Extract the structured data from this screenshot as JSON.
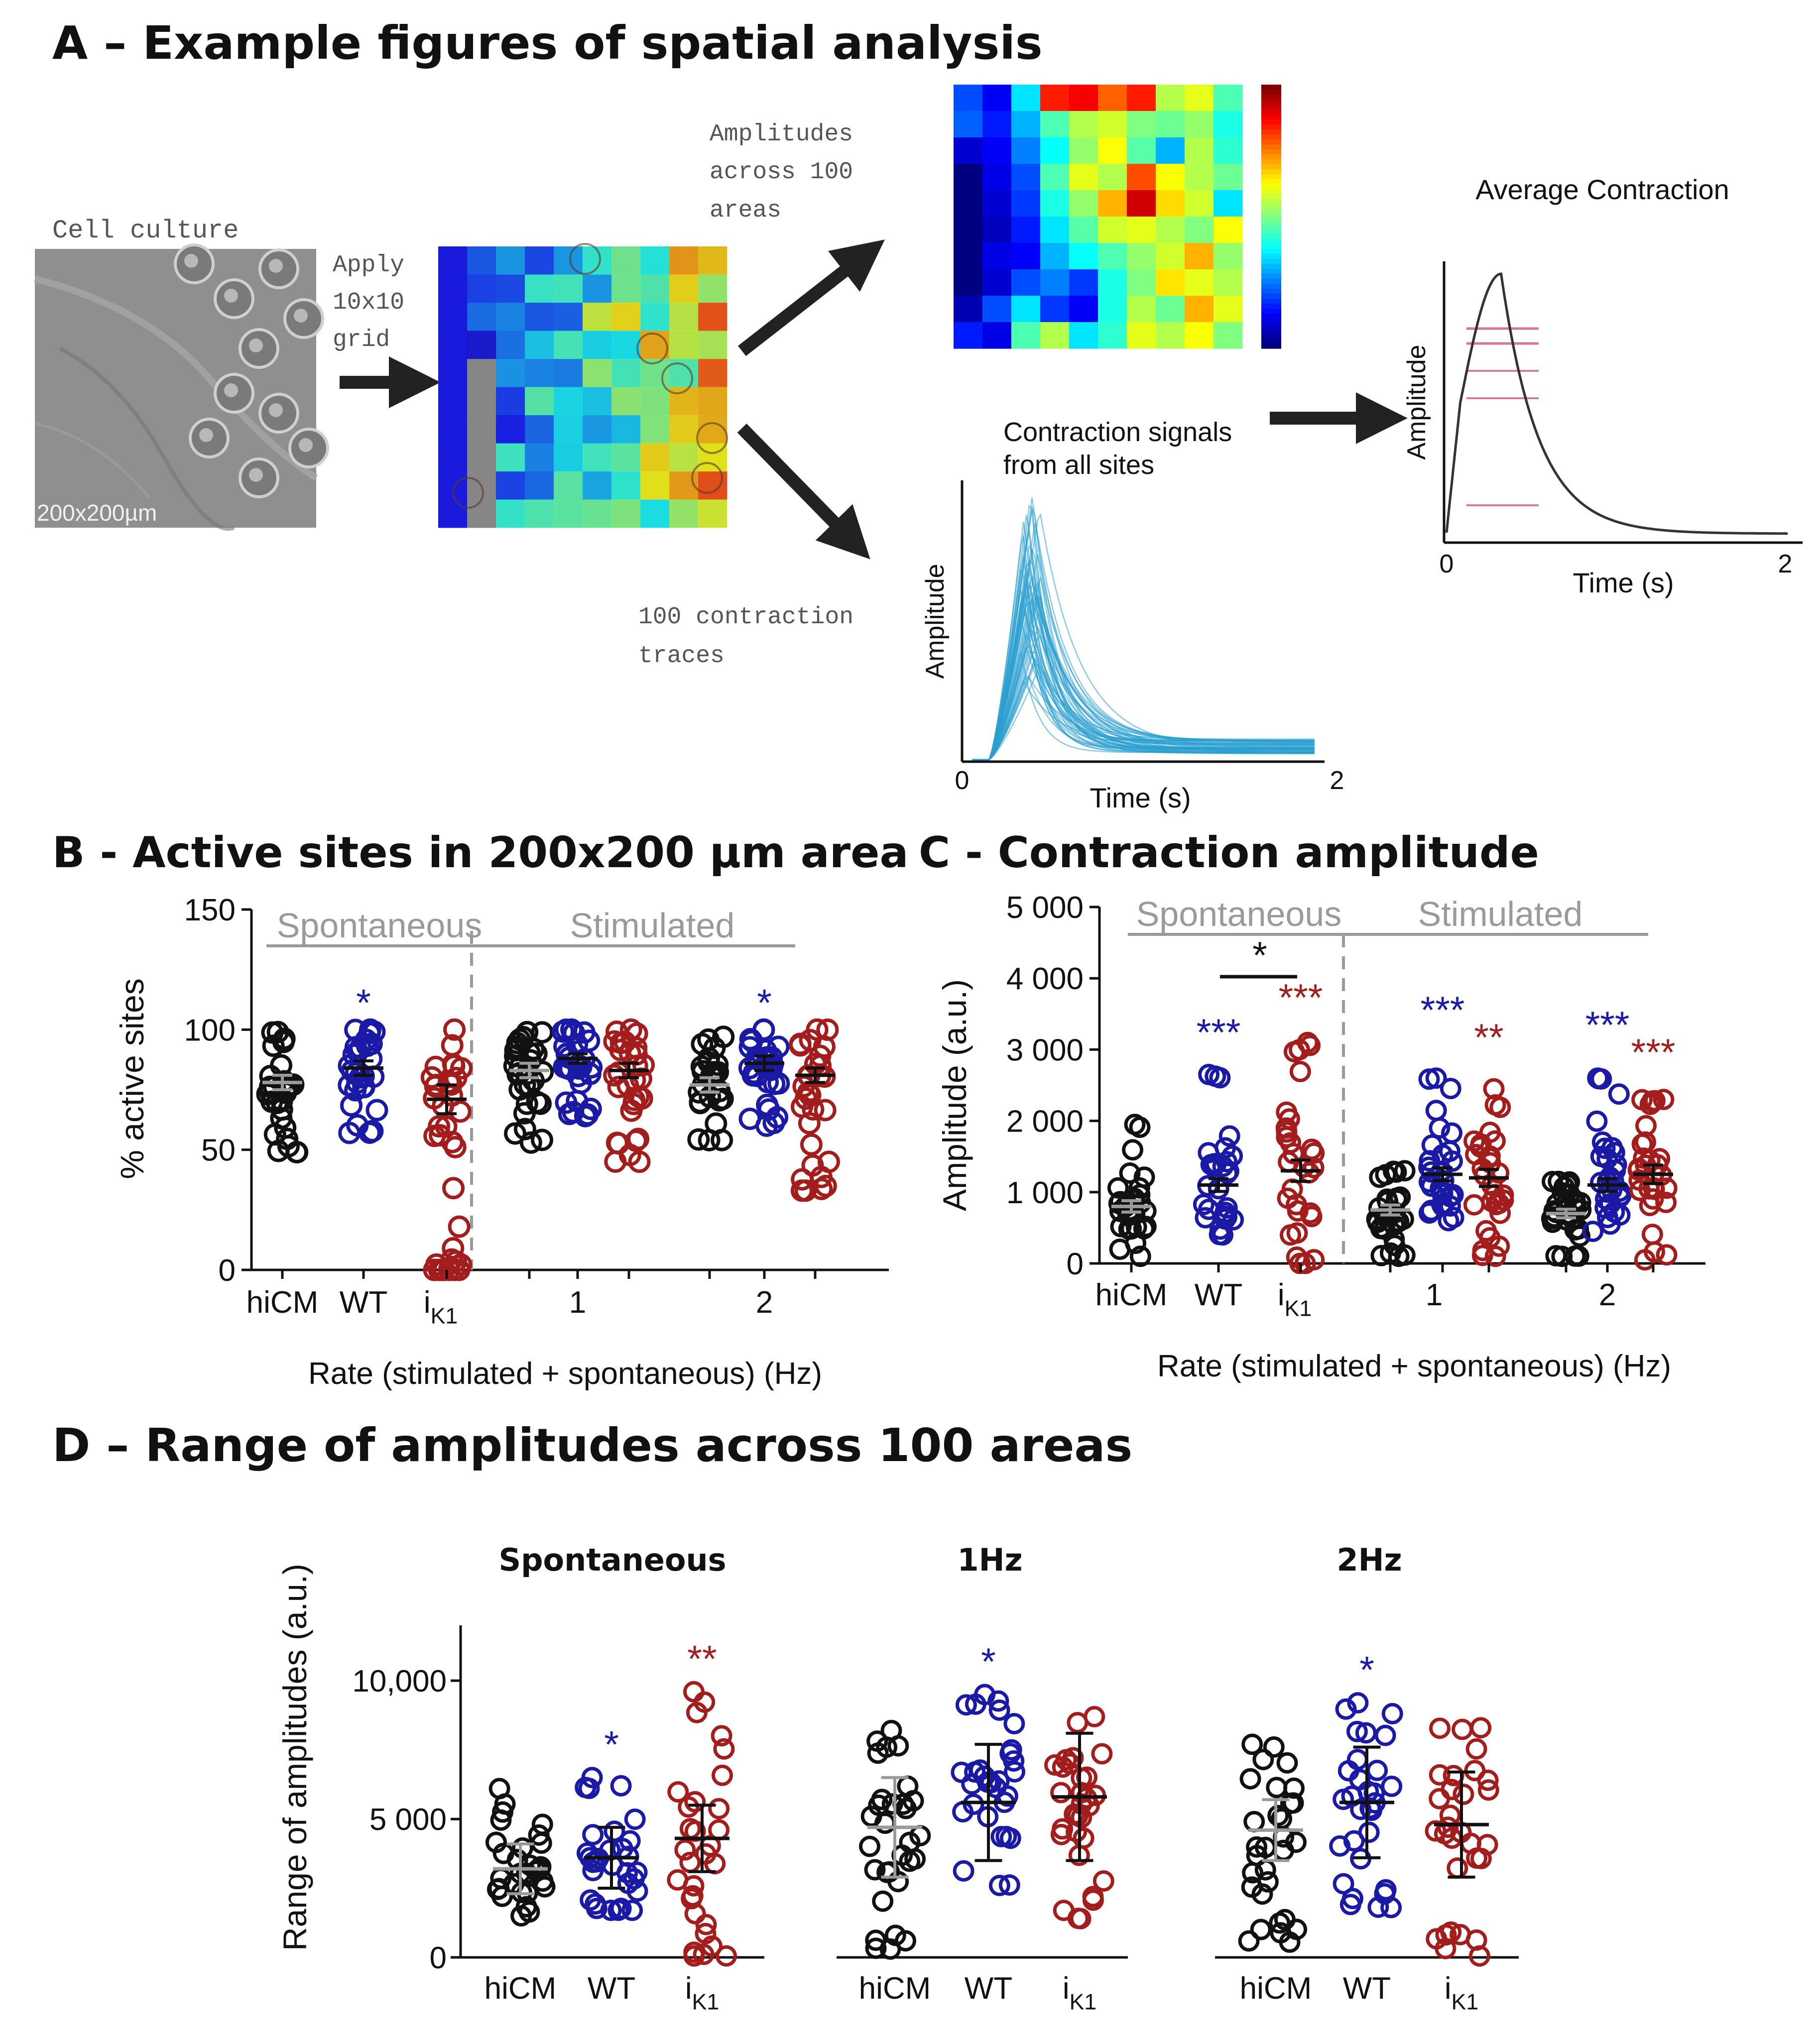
{
  "panel_a": {
    "title": "A – Example figures of spatial analysis",
    "cell_culture_label": "Cell culture",
    "scale_label": "200x200µm",
    "apply_grid_label": [
      "Apply",
      "10x10",
      "grid"
    ],
    "amplitudes_label": [
      "Amplitudes",
      "across 100",
      "areas"
    ],
    "traces_label": [
      "100 contraction",
      "traces"
    ],
    "contraction_signals_label": [
      "Contraction signals",
      "from all sites"
    ],
    "average_title": "Average Contraction",
    "ylabel": "Amplitude",
    "xlabel": "Time (s)",
    "x_start": "0",
    "x_end": "2",
    "colors": {
      "trace": "#2a9fd0",
      "arrow": "#222222",
      "avg_line": "#333333",
      "avg_marks": "#cc5577"
    }
  },
  "chart_data": [
    {
      "id": "B",
      "type": "scatter",
      "title": "B - Active sites in 200x200 µm area",
      "ylabel": "% active sites",
      "xlabel": "Rate (stimulated + spontaneous) (Hz)",
      "ylim": [
        0,
        150
      ],
      "yticks": [
        "0",
        "50",
        "100",
        "150"
      ],
      "section_labels": [
        "Spontaneous",
        "Stimulated"
      ],
      "group_labels": [
        "hiCM",
        "WT",
        "i",
        "1",
        "2"
      ],
      "subscript": "K1",
      "groups": [
        {
          "condition": "Spontaneous",
          "series": "hiCM",
          "mean": 78,
          "sem": 3,
          "min": 49,
          "max": 99
        },
        {
          "condition": "Spontaneous",
          "series": "WT",
          "mean": 84,
          "sem": 3,
          "min": 57,
          "max": 100,
          "sig": "*"
        },
        {
          "condition": "Spontaneous",
          "series": "iK1",
          "mean": 71,
          "sem": 6,
          "min": 0,
          "max": 100
        },
        {
          "condition": "1",
          "series": "hiCM",
          "mean": 83,
          "sem": 3,
          "min": 53,
          "max": 99
        },
        {
          "condition": "1",
          "series": "WT",
          "mean": 88,
          "sem": 2,
          "min": 64,
          "max": 100
        },
        {
          "condition": "1",
          "series": "iK1",
          "mean": 83,
          "sem": 3,
          "min": 45,
          "max": 100
        },
        {
          "condition": "2",
          "series": "hiCM",
          "mean": 77,
          "sem": 3,
          "min": 54,
          "max": 97
        },
        {
          "condition": "2",
          "series": "WT",
          "mean": 86,
          "sem": 3,
          "min": 60,
          "max": 100,
          "sig": "*"
        },
        {
          "condition": "2",
          "series": "iK1",
          "mean": 81,
          "sem": 3,
          "min": 33,
          "max": 100
        }
      ]
    },
    {
      "id": "C",
      "type": "scatter",
      "title": "C - Contraction amplitude",
      "ylabel": "Amplitude (a.u.)",
      "xlabel": "Rate (stimulated + spontaneous) (Hz)",
      "ylim": [
        0,
        5000
      ],
      "yticks": [
        "0",
        "1 000",
        "2 000",
        "3 000",
        "4 000",
        "5 000"
      ],
      "section_labels": [
        "Spontaneous",
        "Stimulated"
      ],
      "group_labels": [
        "hiCM",
        "WT",
        "i",
        "1",
        "2"
      ],
      "subscript": "K1",
      "bracket_label": "*",
      "groups": [
        {
          "condition": "Spontaneous",
          "series": "hiCM",
          "mean": 800,
          "sem": 80,
          "min": 100,
          "max": 1950
        },
        {
          "condition": "Spontaneous",
          "series": "WT",
          "mean": 1100,
          "sem": 90,
          "min": 400,
          "max": 2650,
          "sig": "***"
        },
        {
          "condition": "Spontaneous",
          "series": "iK1",
          "mean": 1300,
          "sem": 150,
          "min": 0,
          "max": 3100,
          "sig": "***"
        },
        {
          "condition": "1",
          "series": "hiCM",
          "mean": 750,
          "sem": 70,
          "min": 100,
          "max": 1300
        },
        {
          "condition": "1",
          "series": "WT",
          "mean": 1250,
          "sem": 90,
          "min": 600,
          "max": 2600,
          "sig": "***"
        },
        {
          "condition": "1",
          "series": "iK1",
          "mean": 1200,
          "sem": 120,
          "min": 100,
          "max": 2450,
          "sig": "**"
        },
        {
          "condition": "2",
          "series": "hiCM",
          "mean": 700,
          "sem": 60,
          "min": 100,
          "max": 1150
        },
        {
          "condition": "2",
          "series": "WT",
          "mean": 1100,
          "sem": 90,
          "min": 450,
          "max": 2600,
          "sig": "***"
        },
        {
          "condition": "2",
          "series": "iK1",
          "mean": 1250,
          "sem": 130,
          "min": 50,
          "max": 2300,
          "sig": "***"
        }
      ]
    },
    {
      "id": "D",
      "type": "scatter",
      "title": "D – Range of amplitudes across 100 areas",
      "ylabel": "Range of amplitudes (a.u.)",
      "ylim": [
        0,
        12000
      ],
      "yticks": [
        "0",
        "5 000",
        "10,000"
      ],
      "group_labels": [
        "hiCM",
        "WT",
        "i"
      ],
      "subscript": "K1",
      "subplots": [
        {
          "title": "Spontaneous",
          "groups": [
            {
              "series": "hiCM",
              "mean": 3200,
              "sd": 900,
              "min": 1500,
              "max": 6100
            },
            {
              "series": "WT",
              "mean": 3600,
              "sd": 1100,
              "min": 1700,
              "max": 6500,
              "sig": "*"
            },
            {
              "series": "iK1",
              "mean": 4300,
              "sd": 1200,
              "min": 50,
              "max": 9600,
              "sig": "**"
            }
          ]
        },
        {
          "title": "1Hz",
          "groups": [
            {
              "series": "hiCM",
              "mean": 4700,
              "sd": 1800,
              "min": 300,
              "max": 8200
            },
            {
              "series": "WT",
              "mean": 5600,
              "sd": 2100,
              "min": 2600,
              "max": 9500,
              "sig": "*"
            },
            {
              "series": "iK1",
              "mean": 5800,
              "sd": 2300,
              "min": 1400,
              "max": 8700
            }
          ]
        },
        {
          "title": "2Hz",
          "groups": [
            {
              "series": "hiCM",
              "mean": 4600,
              "sd": 1100,
              "min": 550,
              "max": 7700
            },
            {
              "series": "WT",
              "mean": 5600,
              "sd": 2000,
              "min": 1800,
              "max": 9200,
              "sig": "*"
            },
            {
              "series": "iK1",
              "mean": 4800,
              "sd": 1900,
              "min": 50,
              "max": 8300
            }
          ]
        }
      ]
    }
  ],
  "colors": {
    "hiCM": "#111111",
    "WT": "#1a1aa6",
    "iK1": "#a31d1d",
    "gray": "#9a9a9a",
    "axis": "#111111"
  }
}
